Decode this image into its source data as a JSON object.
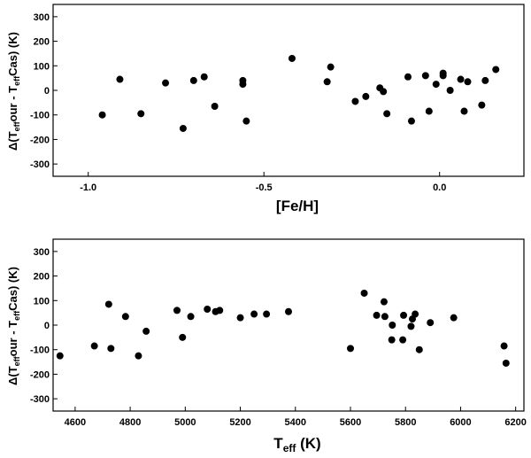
{
  "chart_data": [
    {
      "type": "scatter",
      "title": "",
      "xlabel": "[Fe/H]",
      "ylabel_main": "Δ(T",
      "ylabel_sub1": "eff",
      "ylabel_mid": "our - T",
      "ylabel_sub2": "eff",
      "ylabel_tail": "Cas) (K)",
      "xlim": [
        -1.1,
        0.24
      ],
      "ylim": [
        -350,
        350
      ],
      "xticks": [
        -1.0,
        -0.5,
        0.0
      ],
      "xtick_labels": [
        "-1.0",
        "-0.5",
        "0.0"
      ],
      "yticks": [
        -300,
        -200,
        -100,
        0,
        100,
        200,
        300
      ],
      "ytick_labels": [
        "-300",
        "-200",
        "-100",
        "0",
        "100",
        "200",
        "300"
      ],
      "grid": false,
      "points": [
        {
          "x": -0.96,
          "y": -100
        },
        {
          "x": -0.91,
          "y": 45
        },
        {
          "x": -0.85,
          "y": -95
        },
        {
          "x": -0.78,
          "y": 30
        },
        {
          "x": -0.73,
          "y": -155
        },
        {
          "x": -0.7,
          "y": 40
        },
        {
          "x": -0.67,
          "y": 55
        },
        {
          "x": -0.64,
          "y": -65
        },
        {
          "x": -0.56,
          "y": 40
        },
        {
          "x": -0.56,
          "y": 25
        },
        {
          "x": -0.55,
          "y": -125
        },
        {
          "x": -0.42,
          "y": 130
        },
        {
          "x": -0.32,
          "y": 35
        },
        {
          "x": -0.31,
          "y": 95
        },
        {
          "x": -0.24,
          "y": -45
        },
        {
          "x": -0.21,
          "y": -25
        },
        {
          "x": -0.17,
          "y": 10
        },
        {
          "x": -0.16,
          "y": -5
        },
        {
          "x": -0.15,
          "y": -95
        },
        {
          "x": -0.09,
          "y": 55
        },
        {
          "x": -0.08,
          "y": -125
        },
        {
          "x": -0.04,
          "y": 60
        },
        {
          "x": -0.03,
          "y": -85
        },
        {
          "x": -0.01,
          "y": 25
        },
        {
          "x": 0.01,
          "y": 70
        },
        {
          "x": 0.01,
          "y": 60
        },
        {
          "x": 0.03,
          "y": 0
        },
        {
          "x": 0.06,
          "y": 45
        },
        {
          "x": 0.07,
          "y": -85
        },
        {
          "x": 0.08,
          "y": 35
        },
        {
          "x": 0.12,
          "y": -60
        },
        {
          "x": 0.13,
          "y": 40
        },
        {
          "x": 0.16,
          "y": 85
        }
      ]
    },
    {
      "type": "scatter",
      "title": "",
      "xlabel_main": "T",
      "xlabel_sub": "eff",
      "xlabel_tail": " (K)",
      "ylabel_main": "Δ(T",
      "ylabel_sub1": "eff",
      "ylabel_mid": "our - T",
      "ylabel_sub2": "eff",
      "ylabel_tail": "Cas) (K)",
      "xlim": [
        4520,
        6230
      ],
      "ylim": [
        -350,
        350
      ],
      "xticks": [
        4600,
        4800,
        5000,
        5200,
        5400,
        5600,
        5800,
        6000,
        6200
      ],
      "xtick_labels": [
        "4600",
        "4800",
        "5000",
        "5200",
        "5400",
        "5600",
        "5800",
        "6000",
        "6200"
      ],
      "yticks": [
        -300,
        -200,
        -100,
        0,
        100,
        200,
        300
      ],
      "ytick_labels": [
        "-300",
        "-200",
        "-100",
        "0",
        "100",
        "200",
        "300"
      ],
      "grid": false,
      "points": [
        {
          "x": 4545,
          "y": -125
        },
        {
          "x": 4670,
          "y": -85
        },
        {
          "x": 4722,
          "y": 85
        },
        {
          "x": 4730,
          "y": -95
        },
        {
          "x": 4783,
          "y": 35
        },
        {
          "x": 4830,
          "y": -125
        },
        {
          "x": 4858,
          "y": -25
        },
        {
          "x": 4970,
          "y": 60
        },
        {
          "x": 4990,
          "y": -50
        },
        {
          "x": 5020,
          "y": 35
        },
        {
          "x": 5080,
          "y": 65
        },
        {
          "x": 5110,
          "y": 55
        },
        {
          "x": 5125,
          "y": 60
        },
        {
          "x": 5200,
          "y": 30
        },
        {
          "x": 5250,
          "y": 45
        },
        {
          "x": 5295,
          "y": 45
        },
        {
          "x": 5375,
          "y": 55
        },
        {
          "x": 5600,
          "y": -95
        },
        {
          "x": 5650,
          "y": 130
        },
        {
          "x": 5695,
          "y": 40
        },
        {
          "x": 5722,
          "y": 95
        },
        {
          "x": 5725,
          "y": 35
        },
        {
          "x": 5750,
          "y": -60
        },
        {
          "x": 5752,
          "y": 0
        },
        {
          "x": 5790,
          "y": -60
        },
        {
          "x": 5793,
          "y": 40
        },
        {
          "x": 5820,
          "y": -5
        },
        {
          "x": 5825,
          "y": 25
        },
        {
          "x": 5835,
          "y": 45
        },
        {
          "x": 5850,
          "y": -100
        },
        {
          "x": 5890,
          "y": 10
        },
        {
          "x": 5975,
          "y": 30
        },
        {
          "x": 6158,
          "y": -85
        },
        {
          "x": 6165,
          "y": -155
        }
      ]
    }
  ]
}
